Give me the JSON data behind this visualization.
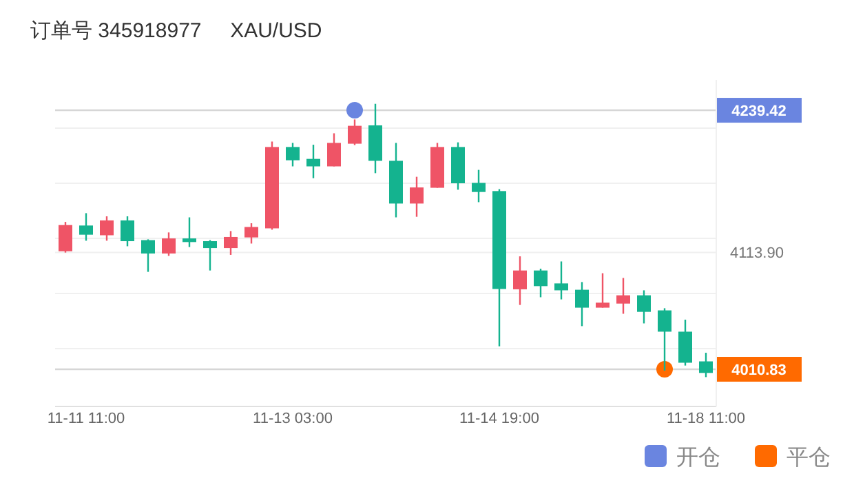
{
  "chart_data": {
    "type": "candlestick",
    "title": "订单号 345918977     XAU/USD",
    "categories": [
      null,
      "11-11 11:00",
      null,
      null,
      null,
      null,
      null,
      null,
      null,
      null,
      null,
      "11-13 03:00",
      null,
      null,
      null,
      null,
      null,
      null,
      null,
      null,
      null,
      "11-14 19:00",
      null,
      null,
      null,
      null,
      null,
      null,
      null,
      null,
      null,
      "11-18 11:00"
    ],
    "ohlc": [
      [
        4115.0,
        4140.9,
        4113.8,
        4138.1
      ],
      [
        4137.7,
        4148.6,
        4124.3,
        4129.6
      ],
      [
        4129.1,
        4145.8,
        4124.3,
        4142.2
      ],
      [
        4142.2,
        4145.8,
        4119.4,
        4123.9
      ],
      [
        4124.8,
        4125.5,
        4096.8,
        4113.0
      ],
      [
        4113.0,
        4131.6,
        4110.9,
        4126.3
      ],
      [
        4126.3,
        4144.9,
        4118.7,
        4123.1
      ],
      [
        4123.9,
        4124.8,
        4098.0,
        4117.8
      ],
      [
        4117.8,
        4132.8,
        4111.8,
        4127.6
      ],
      [
        4127.2,
        4139.7,
        4121.8,
        4136.4
      ],
      [
        4135.2,
        4211.8,
        4134.0,
        4207.0
      ],
      [
        4207.0,
        4210.6,
        4189.9,
        4195.3
      ],
      [
        4196.5,
        4209.0,
        4179.5,
        4189.9
      ],
      [
        4189.9,
        4219.1,
        4189.9,
        4210.6
      ],
      [
        4209.9,
        4231.3,
        4208.7,
        4225.7
      ],
      [
        4226.1,
        4245.1,
        4183.9,
        4194.8
      ],
      [
        4194.8,
        4210.6,
        4144.9,
        4157.1
      ],
      [
        4157.1,
        4180.7,
        4145.4,
        4171.3
      ],
      [
        4171.0,
        4210.6,
        4171.0,
        4207.0
      ],
      [
        4207.0,
        4211.1,
        4169.3,
        4175.0
      ],
      [
        4175.3,
        4186.8,
        4158.3,
        4167.3
      ],
      [
        4168.1,
        4169.8,
        4031.1,
        4081.7
      ],
      [
        4081.4,
        4110.5,
        4067.6,
        4098.0
      ],
      [
        4098.0,
        4099.6,
        4074.4,
        4084.2
      ],
      [
        4086.6,
        4106.0,
        4072.5,
        4080.5
      ],
      [
        4081.0,
        4087.8,
        4048.9,
        4065.2
      ],
      [
        4065.2,
        4095.6,
        4065.2,
        4069.6
      ],
      [
        4068.8,
        4091.4,
        4059.8,
        4076.1
      ],
      [
        4076.1,
        4080.5,
        4051.3,
        4061.5
      ],
      [
        4062.8,
        4064.7,
        4009.6,
        4044.0
      ],
      [
        4044.0,
        4054.6,
        4014.1,
        4016.6
      ],
      [
        4017.8,
        4025.4,
        4003.9,
        4007.6
      ]
    ],
    "colors": [
      "#ef5466",
      "#14b38f",
      "#ef5466",
      "#14b38f",
      "#14b38f",
      "#ef5466",
      "#14b38f",
      "#14b38f",
      "#ef5466",
      "#ef5466",
      "#ef5466",
      "#14b38f",
      "#14b38f",
      "#ef5466",
      "#ef5466",
      "#14b38f",
      "#14b38f",
      "#ef5466",
      "#ef5466",
      "#14b38f",
      "#14b38f",
      "#14b38f",
      "#ef5466",
      "#14b38f",
      "#14b38f",
      "#14b38f",
      "#ef5466",
      "#ef5466",
      "#14b38f",
      "#14b38f",
      "#14b38f",
      "#14b38f"
    ],
    "series": [
      {
        "name": "开仓",
        "type": "scatter",
        "color": "#6a85e0",
        "values": [
          null,
          null,
          null,
          null,
          null,
          null,
          null,
          null,
          null,
          null,
          null,
          null,
          null,
          null,
          4239.42,
          null,
          null,
          null,
          null,
          null,
          null,
          null,
          null,
          null,
          null,
          null,
          null,
          null,
          null,
          null,
          null,
          null
        ]
      },
      {
        "name": "平仓",
        "type": "scatter",
        "color": "#ff6a00",
        "values": [
          null,
          null,
          null,
          null,
          null,
          null,
          null,
          null,
          null,
          null,
          null,
          null,
          null,
          null,
          null,
          null,
          null,
          null,
          null,
          null,
          null,
          null,
          null,
          null,
          null,
          null,
          null,
          null,
          null,
          4010.83,
          null,
          null
        ]
      }
    ],
    "ylim": [
      3978.0,
      4266.2
    ],
    "yticks": [
      {
        "value": 4239.42,
        "label": "4239.42"
      },
      {
        "value": 4010.83,
        "label": "4010.83"
      },
      {
        "value": 4223.6,
        "label": null
      },
      {
        "value": 4175.0,
        "label": null
      },
      {
        "value": 4113.9,
        "label": "4113.90"
      },
      {
        "value": 4126.3,
        "label": null
      },
      {
        "value": 4077.7,
        "label": null
      },
      {
        "value": 4029.1,
        "label": null
      }
    ],
    "grid": "y",
    "legend": "bottom right",
    "marker": "circle"
  }
}
